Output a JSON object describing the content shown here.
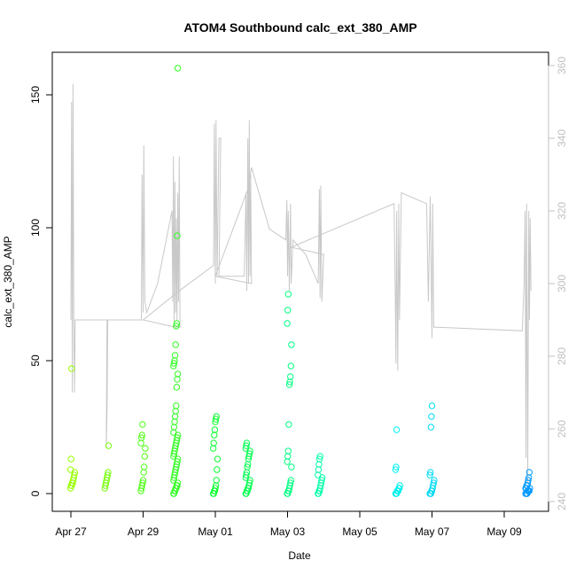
{
  "chart_data": {
    "type": "scatter",
    "title": "ATOM4 Southbound calc_ext_380_AMP",
    "xlabel": "Date",
    "ylabel": "calc_ext_380_AMP",
    "x_ticks": [
      "Apr 27",
      "Apr 29",
      "May 01",
      "May 03",
      "May 05",
      "May 07",
      "May 09"
    ],
    "y_ticks": [
      "0",
      "50",
      "100",
      "150"
    ],
    "y2_ticks": [
      "240",
      "260",
      "280",
      "300",
      "320",
      "340",
      "360"
    ],
    "xlim": [
      "2021-04-26 12:00",
      "2021-05-10 00:00"
    ],
    "ylim": [
      -6,
      166
    ],
    "y2lim": [
      237.5,
      365
    ],
    "grid": false,
    "legend": "none",
    "colors": {
      "line": "#c8c8c8",
      "axis": "#000000",
      "right_axis": "#c0c0c0",
      "gradient": [
        "#9aff00",
        "#00ff30",
        "#00ffee",
        "#0099ff"
      ]
    },
    "scatter_clusters": [
      {
        "day": 27.05,
        "values": [
          2,
          3,
          3,
          4,
          4,
          5,
          6,
          7,
          8,
          9,
          13,
          47
        ]
      },
      {
        "day": 28.0,
        "values": [
          2,
          3,
          4,
          5,
          6,
          7,
          8,
          18
        ]
      },
      {
        "day": 29.0,
        "values": [
          1,
          2,
          3,
          4,
          5,
          8,
          10,
          14,
          17,
          19,
          21,
          22,
          26
        ]
      },
      {
        "day": 29.9,
        "values": [
          0,
          0,
          1,
          1,
          2,
          2,
          3,
          3,
          4,
          5,
          6,
          7,
          8,
          9,
          10,
          11,
          12,
          13,
          14,
          15,
          16,
          17,
          18,
          19,
          20,
          21,
          22,
          23,
          25,
          27,
          29,
          31,
          33,
          40,
          43,
          45,
          48,
          49,
          50,
          52,
          56,
          63,
          64,
          97,
          160
        ]
      },
      {
        "day": 31.0,
        "values": [
          0,
          0,
          1,
          1,
          2,
          3,
          5,
          9,
          13,
          17,
          19,
          22,
          24,
          27,
          28,
          29
        ]
      },
      {
        "day": 31.9,
        "values": [
          0,
          0,
          1,
          1,
          2,
          2,
          3,
          4,
          5,
          6,
          7,
          8,
          10,
          11,
          13,
          14,
          15,
          16,
          17,
          18,
          19
        ]
      },
      {
        "day": 33.05,
        "values": [
          0,
          0,
          1,
          1,
          2,
          3,
          4,
          5,
          10,
          12,
          14,
          16,
          26,
          41,
          42,
          44,
          48,
          56,
          64,
          69,
          75
        ]
      },
      {
        "day": 33.9,
        "values": [
          0,
          0,
          1,
          1,
          2,
          3,
          4,
          5,
          6,
          7,
          9,
          11,
          13,
          14
        ]
      },
      {
        "day": 36.05,
        "values": [
          0,
          0,
          0,
          1,
          1,
          1,
          2,
          2,
          3,
          9,
          10,
          24
        ]
      },
      {
        "day": 37.0,
        "values": [
          0,
          0,
          0,
          1,
          1,
          2,
          3,
          4,
          5,
          7,
          8,
          25,
          29,
          33
        ]
      },
      {
        "day": 39.65,
        "values": [
          0,
          0,
          0,
          0,
          1,
          1,
          1,
          1,
          2,
          2,
          2,
          3,
          3,
          4,
          5,
          6,
          8
        ]
      }
    ],
    "line_path": [
      [
        27.0,
        290
      ],
      [
        27.02,
        350
      ],
      [
        27.04,
        270
      ],
      [
        27.06,
        355
      ],
      [
        27.08,
        290
      ],
      [
        27.1,
        270
      ],
      [
        27.12,
        290
      ],
      [
        28.0,
        290
      ],
      [
        27.98,
        255
      ],
      [
        28.0,
        265
      ],
      [
        28.02,
        290
      ],
      [
        28.95,
        290
      ],
      [
        28.97,
        330
      ],
      [
        29.0,
        292
      ],
      [
        29.02,
        338
      ],
      [
        29.05,
        295
      ],
      [
        29.1,
        292
      ],
      [
        29.4,
        300
      ],
      [
        29.8,
        320
      ],
      [
        29.82,
        295
      ],
      [
        29.84,
        335
      ],
      [
        29.86,
        288
      ],
      [
        29.88,
        328
      ],
      [
        29.9,
        292
      ],
      [
        29.92,
        318
      ],
      [
        29.94,
        290
      ],
      [
        29.96,
        325
      ],
      [
        29.98,
        295
      ],
      [
        30.0,
        335
      ],
      [
        30.02,
        288
      ],
      [
        29.9,
        288
      ],
      [
        29.0,
        290
      ],
      [
        30.0,
        298
      ],
      [
        30.95,
        305
      ],
      [
        30.97,
        344
      ],
      [
        31.0,
        300
      ],
      [
        31.02,
        345
      ],
      [
        31.05,
        302
      ],
      [
        31.1,
        340
      ],
      [
        31.15,
        340
      ],
      [
        31.1,
        302
      ],
      [
        31.8,
        302
      ],
      [
        31.85,
        325
      ],
      [
        31.87,
        298
      ],
      [
        31.9,
        340
      ],
      [
        31.92,
        300
      ],
      [
        31.94,
        345
      ],
      [
        31.96,
        302
      ],
      [
        31.98,
        330
      ],
      [
        32.0,
        300
      ],
      [
        31.0,
        302
      ],
      [
        31.9,
        326
      ],
      [
        32.0,
        332
      ],
      [
        32.5,
        315
      ],
      [
        32.95,
        312
      ],
      [
        32.98,
        323
      ],
      [
        33.0,
        302
      ],
      [
        33.02,
        320
      ],
      [
        33.05,
        298
      ],
      [
        33.08,
        322
      ],
      [
        33.1,
        300
      ],
      [
        33.15,
        312
      ],
      [
        33.5,
        308
      ],
      [
        33.85,
        300
      ],
      [
        33.88,
        326
      ],
      [
        33.9,
        296
      ],
      [
        33.92,
        327
      ],
      [
        33.95,
        295
      ],
      [
        34.0,
        308
      ],
      [
        33.1,
        310
      ],
      [
        35.95,
        322
      ],
      [
        35.98,
        300
      ],
      [
        36.0,
        278
      ],
      [
        36.02,
        320
      ],
      [
        36.05,
        276
      ],
      [
        36.08,
        322
      ],
      [
        36.1,
        290
      ],
      [
        36.15,
        325
      ],
      [
        36.85,
        322
      ],
      [
        36.9,
        295
      ],
      [
        36.95,
        324
      ],
      [
        37.0,
        285
      ],
      [
        37.02,
        322
      ],
      [
        37.05,
        288
      ],
      [
        37.1,
        288
      ],
      [
        39.5,
        287
      ],
      [
        39.55,
        300
      ],
      [
        39.58,
        320
      ],
      [
        39.6,
        252
      ],
      [
        39.62,
        322
      ],
      [
        39.65,
        245
      ],
      [
        39.68,
        320
      ],
      [
        39.7,
        290
      ],
      [
        39.72,
        318
      ],
      [
        39.74,
        298
      ]
    ]
  }
}
